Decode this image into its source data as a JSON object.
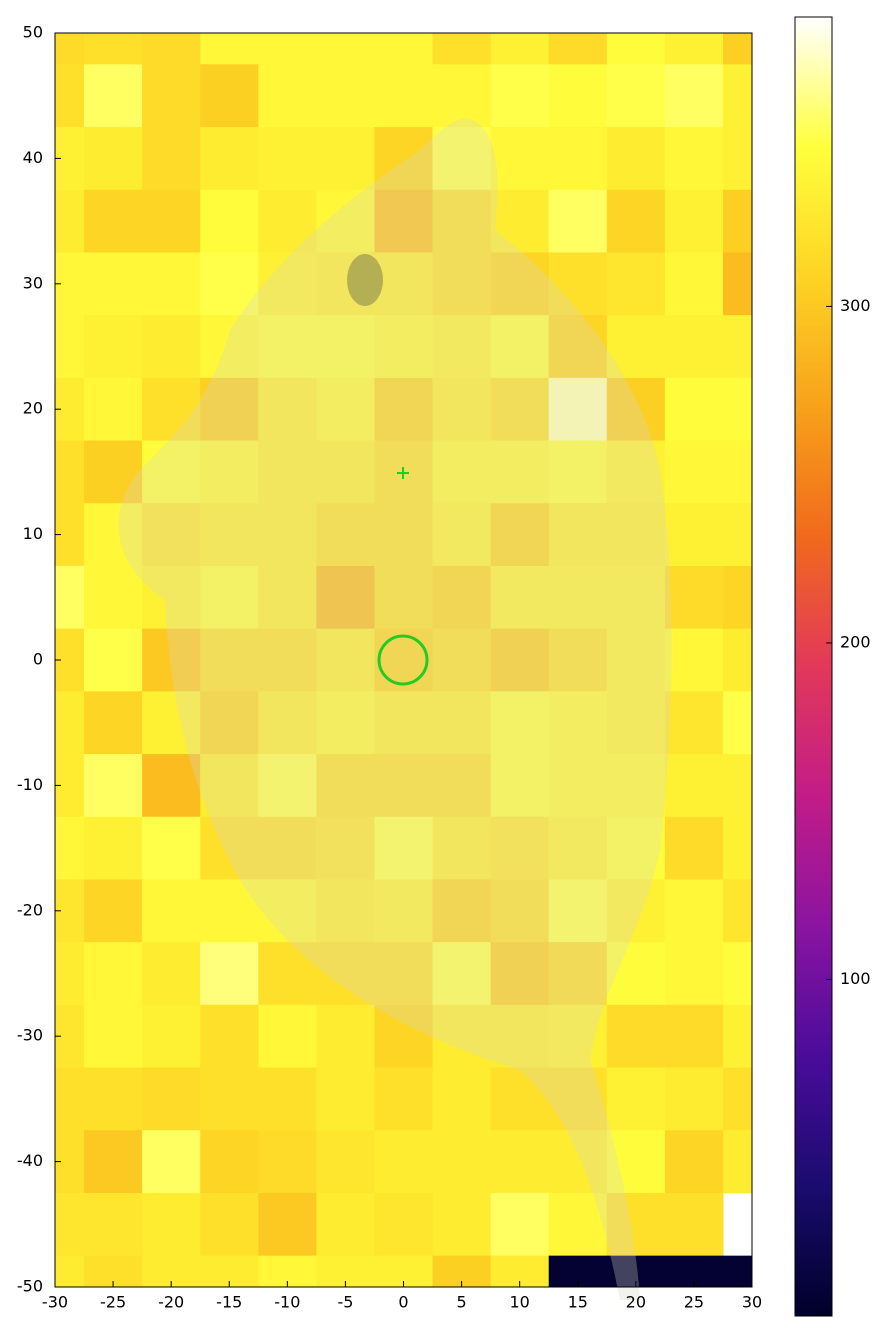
{
  "chart_data": {
    "type": "heatmap",
    "x": [
      -30,
      -25,
      -20,
      -15,
      -10,
      -5,
      0,
      5,
      10,
      15,
      20,
      25,
      30
    ],
    "y": [
      50,
      45,
      40,
      35,
      30,
      25,
      20,
      15,
      10,
      5,
      0,
      -5,
      -10,
      -15,
      -20,
      -25,
      -30,
      -35,
      -40,
      -45,
      -50
    ],
    "z": [
      [
        315,
        320,
        315,
        340,
        340,
        340,
        340,
        320,
        335,
        315,
        345,
        335,
        305
      ],
      [
        320,
        355,
        315,
        305,
        340,
        340,
        340,
        340,
        350,
        345,
        350,
        355,
        335
      ],
      [
        335,
        330,
        315,
        330,
        335,
        335,
        310,
        350,
        340,
        340,
        330,
        340,
        335
      ],
      [
        330,
        310,
        310,
        345,
        330,
        340,
        295,
        320,
        330,
        355,
        310,
        335,
        305
      ],
      [
        340,
        340,
        340,
        350,
        335,
        330,
        330,
        320,
        310,
        320,
        325,
        340,
        290
      ],
      [
        340,
        335,
        330,
        340,
        345,
        345,
        340,
        335,
        345,
        310,
        335,
        335,
        335
      ],
      [
        330,
        340,
        320,
        305,
        330,
        340,
        310,
        330,
        320,
        370,
        305,
        345,
        345
      ],
      [
        320,
        305,
        345,
        340,
        330,
        330,
        320,
        340,
        340,
        345,
        335,
        340,
        340
      ],
      [
        320,
        340,
        325,
        330,
        330,
        320,
        320,
        335,
        310,
        330,
        330,
        335,
        335
      ],
      [
        355,
        340,
        335,
        345,
        330,
        290,
        320,
        310,
        335,
        335,
        335,
        315,
        310
      ],
      [
        320,
        350,
        300,
        320,
        320,
        330,
        310,
        320,
        305,
        320,
        335,
        340,
        330
      ],
      [
        330,
        310,
        335,
        310,
        330,
        340,
        330,
        330,
        345,
        340,
        335,
        325,
        350
      ],
      [
        330,
        355,
        290,
        330,
        350,
        320,
        320,
        320,
        345,
        340,
        340,
        335,
        335
      ],
      [
        340,
        335,
        350,
        320,
        320,
        325,
        350,
        330,
        325,
        335,
        345,
        315,
        335
      ],
      [
        325,
        310,
        340,
        340,
        340,
        330,
        335,
        310,
        320,
        350,
        335,
        340,
        325
      ],
      [
        330,
        340,
        330,
        360,
        320,
        320,
        320,
        350,
        305,
        315,
        345,
        340,
        345
      ],
      [
        325,
        340,
        335,
        320,
        340,
        330,
        310,
        330,
        330,
        335,
        315,
        315,
        335
      ],
      [
        320,
        320,
        315,
        320,
        320,
        330,
        320,
        330,
        320,
        320,
        335,
        330,
        320
      ],
      [
        320,
        300,
        355,
        310,
        315,
        325,
        330,
        330,
        330,
        330,
        345,
        310,
        330
      ],
      [
        325,
        325,
        330,
        320,
        300,
        330,
        325,
        330,
        355,
        340,
        320,
        320,
        null
      ],
      [
        330,
        320,
        330,
        330,
        340,
        335,
        335,
        305,
        330,
        5,
        5,
        5,
        5
      ]
    ],
    "xlim": [
      -30,
      30
    ],
    "ylim": [
      -50,
      50
    ],
    "xticks": [
      -30,
      -25,
      -20,
      -15,
      -10,
      -5,
      0,
      5,
      10,
      15,
      20,
      25,
      30
    ],
    "yticks": [
      -50,
      -40,
      -30,
      -20,
      -10,
      0,
      10,
      20,
      30,
      40,
      50
    ],
    "zlim": [
      0,
      386
    ],
    "cticks": [
      100,
      200,
      300
    ],
    "colormap": [
      "#00002a",
      "#1a0c6e",
      "#4a0c9a",
      "#8a14a0",
      "#c21c88",
      "#e2385a",
      "#f06a1c",
      "#f7a21a",
      "#fdd424",
      "#ffff3c",
      "#ffffff"
    ]
  }
}
